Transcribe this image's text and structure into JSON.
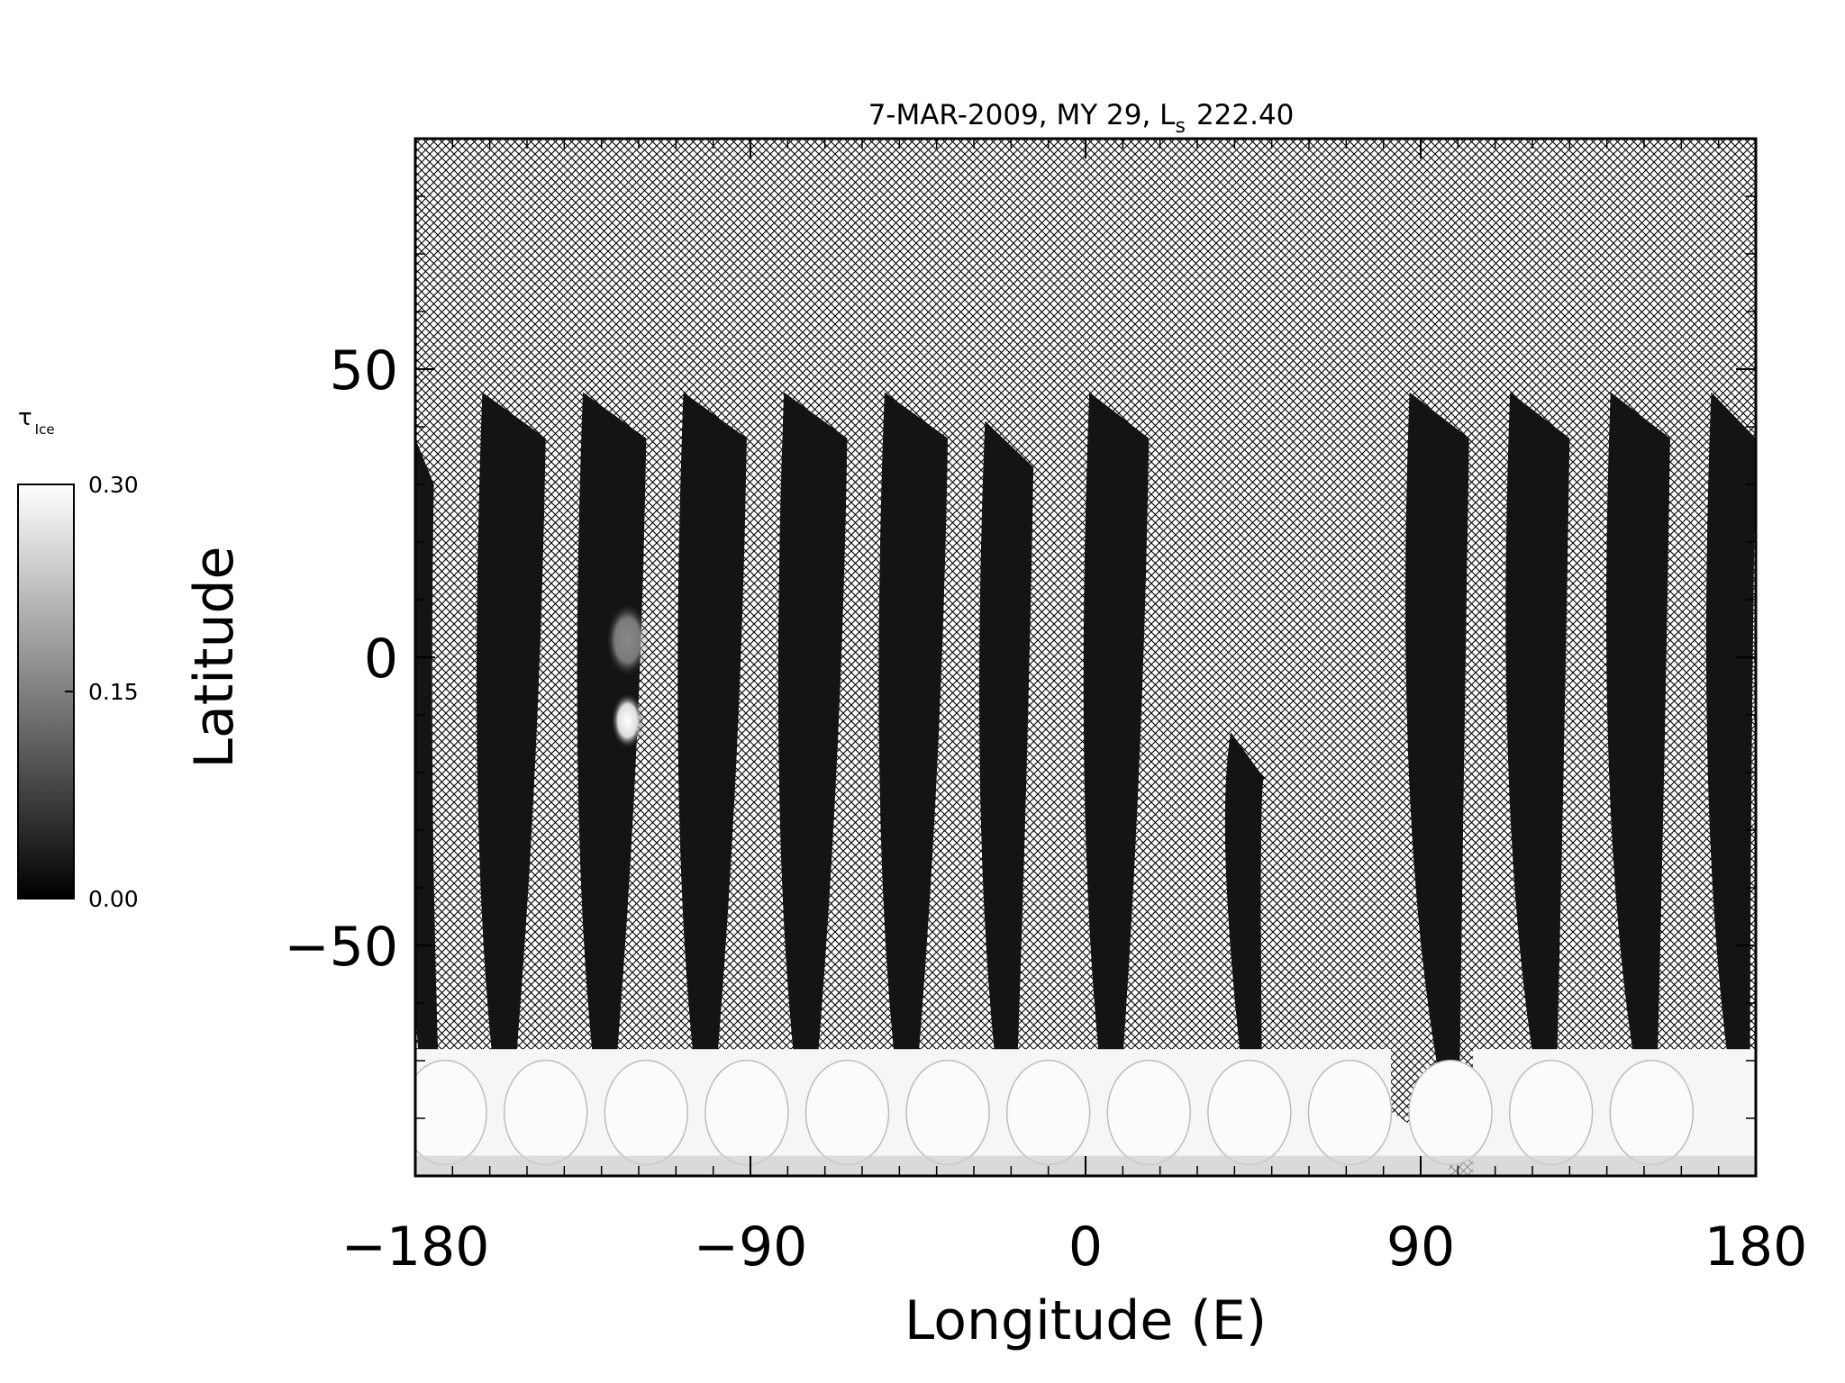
{
  "chart_data": {
    "type": "heatmap",
    "title": "7-MAR-2009, MY 29,  L",
    "title_subscript": "s",
    "title_value": "222.40",
    "xlabel": "Longitude (E)",
    "ylabel": "Latitude",
    "xlim": [
      -180,
      180
    ],
    "ylim": [
      -90,
      90
    ],
    "x_ticks": [
      -180,
      -90,
      0,
      90,
      180
    ],
    "x_tick_labels": [
      "−180",
      "−90",
      "0",
      "90",
      "180"
    ],
    "y_ticks": [
      -50,
      0,
      50
    ],
    "y_tick_labels": [
      "−50",
      "0",
      "50"
    ],
    "no_data_pattern": "crosshatch",
    "colorbar": {
      "label": "τ",
      "label_subscript": "Ice",
      "min": 0.0,
      "max": 0.3,
      "tick_values": [
        0.0,
        0.15,
        0.3
      ],
      "tick_labels": [
        "0.00",
        "0.15",
        "0.30"
      ],
      "colormap": "grayscale"
    },
    "swaths": [
      {
        "lon_top_left": -180,
        "lon_top_right": -175,
        "lat_top": 38,
        "lon_bottom_center": -176
      },
      {
        "lon_top_left": -162,
        "lon_top_right": -145,
        "lat_top": 46,
        "lon_bottom_center": -156
      },
      {
        "lon_top_left": -135,
        "lon_top_right": -118,
        "lat_top": 46,
        "lon_bottom_center": -129
      },
      {
        "lon_top_left": -108,
        "lon_top_right": -91,
        "lat_top": 46,
        "lon_bottom_center": -102
      },
      {
        "lon_top_left": -81,
        "lon_top_right": -64,
        "lat_top": 46,
        "lon_bottom_center": -75
      },
      {
        "lon_top_left": -54,
        "lon_top_right": -37,
        "lat_top": 46,
        "lon_bottom_center": -48
      },
      {
        "lon_top_left": -27,
        "lon_top_right": -14,
        "lat_top": 41,
        "lon_bottom_center": -21
      },
      {
        "lon_top_left": 1,
        "lon_top_right": 17,
        "lat_top": 46,
        "lon_bottom_center": 7
      },
      {
        "lon_top_left": 39,
        "lon_top_right": 48,
        "lat_top": -13,
        "lon_bottom_center": 45
      },
      {
        "lon_top_left": 87,
        "lon_top_right": 103,
        "lat_top": 46,
        "lon_bottom_center": 98
      },
      {
        "lon_top_left": 114,
        "lon_top_right": 130,
        "lat_top": 46,
        "lon_bottom_center": 124
      },
      {
        "lon_top_left": 141,
        "lon_top_right": 157,
        "lat_top": 46,
        "lon_bottom_center": 151
      },
      {
        "lon_top_left": 168,
        "lon_top_right": 180,
        "lat_top": 46,
        "lon_bottom_center": 176
      }
    ],
    "features": [
      {
        "description": "bright ice cloud",
        "lon": -123,
        "lat": -11,
        "value": 0.3
      },
      {
        "description": "faint ice cloud",
        "lon": -123,
        "lat": 3,
        "value": 0.15
      }
    ]
  }
}
